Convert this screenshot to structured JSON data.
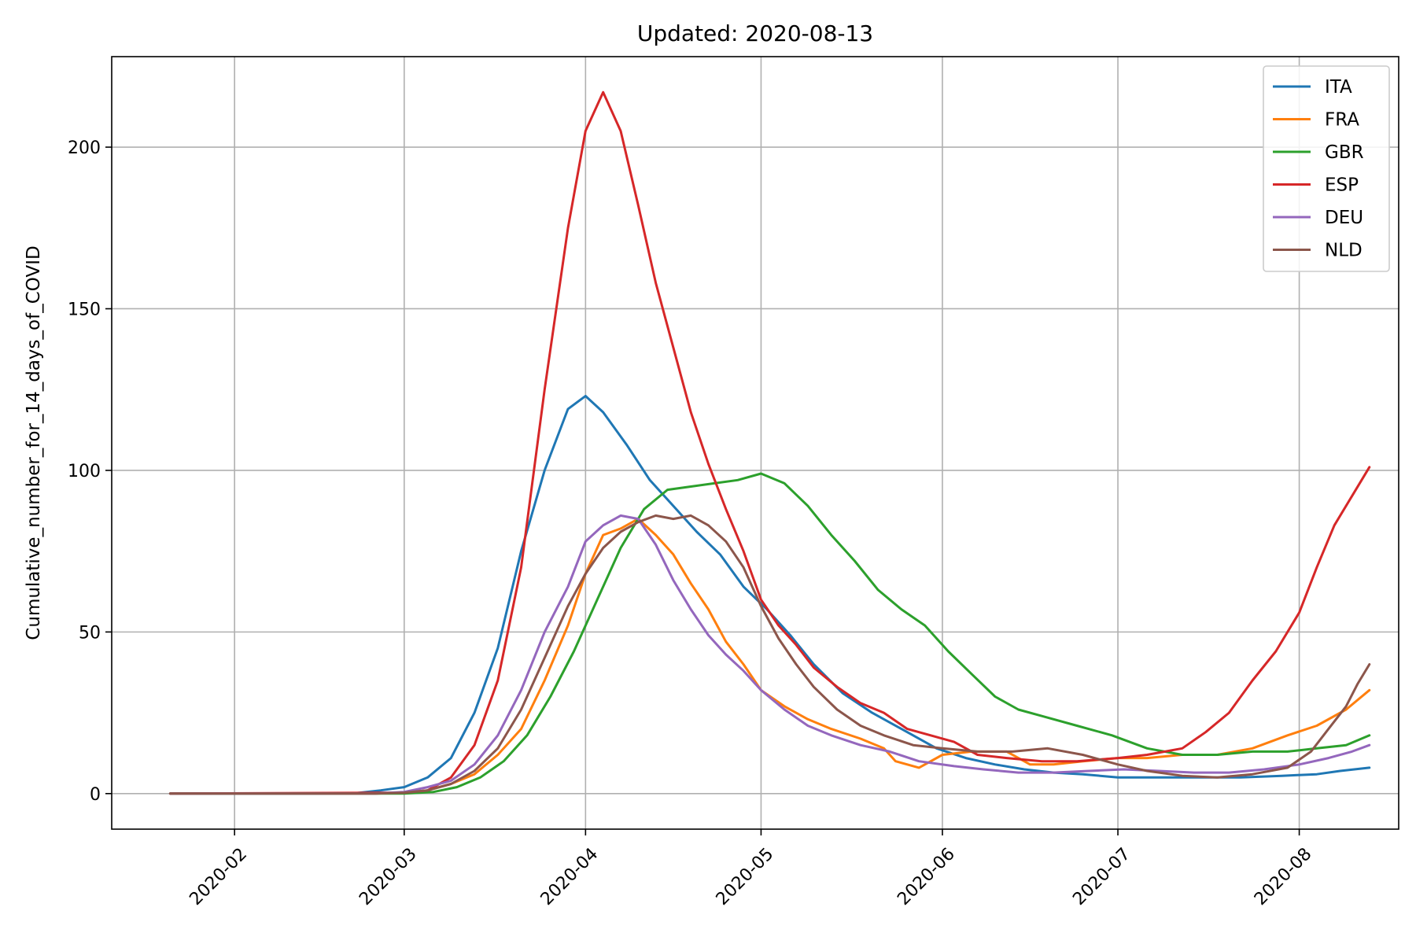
{
  "chart_data": {
    "type": "line",
    "title": "Updated: 2020-08-13",
    "xlabel": "",
    "ylabel": "Cumulative_number_for_14_days_of_COVID",
    "xlim": [
      "2020-01-11",
      "2020-08-18"
    ],
    "ylim": [
      -11,
      228
    ],
    "x_ticks": [
      "2020-02-01",
      "2020-03-01",
      "2020-04-01",
      "2020-05-01",
      "2020-06-01",
      "2020-07-01",
      "2020-08-01"
    ],
    "x_tick_labels": [
      "2020-02",
      "2020-03",
      "2020-04",
      "2020-05",
      "2020-06",
      "2020-07",
      "2020-08"
    ],
    "y_ticks": [
      0,
      50,
      100,
      150,
      200
    ],
    "grid": true,
    "legend_position": "top-right",
    "series": [
      {
        "name": "ITA",
        "color": "#1f77b4",
        "points": [
          [
            "2020-01-21",
            0
          ],
          [
            "2020-02-15",
            0
          ],
          [
            "2020-02-22",
            0.2
          ],
          [
            "2020-02-26",
            1
          ],
          [
            "2020-03-01",
            2
          ],
          [
            "2020-03-05",
            5
          ],
          [
            "2020-03-09",
            11
          ],
          [
            "2020-03-13",
            25
          ],
          [
            "2020-03-17",
            45
          ],
          [
            "2020-03-21",
            75
          ],
          [
            "2020-03-25",
            100
          ],
          [
            "2020-03-29",
            119
          ],
          [
            "2020-04-01",
            123
          ],
          [
            "2020-04-04",
            118
          ],
          [
            "2020-04-08",
            108
          ],
          [
            "2020-04-12",
            97
          ],
          [
            "2020-04-16",
            89
          ],
          [
            "2020-04-20",
            81
          ],
          [
            "2020-04-24",
            74
          ],
          [
            "2020-04-28",
            64
          ],
          [
            "2020-05-02",
            57
          ],
          [
            "2020-05-06",
            49
          ],
          [
            "2020-05-10",
            40
          ],
          [
            "2020-05-15",
            31
          ],
          [
            "2020-05-20",
            25
          ],
          [
            "2020-05-25",
            20
          ],
          [
            "2020-05-31",
            14
          ],
          [
            "2020-06-05",
            11
          ],
          [
            "2020-06-10",
            9
          ],
          [
            "2020-06-15",
            7.5
          ],
          [
            "2020-06-20",
            6.5
          ],
          [
            "2020-06-25",
            6
          ],
          [
            "2020-07-01",
            5
          ],
          [
            "2020-07-08",
            5
          ],
          [
            "2020-07-15",
            5
          ],
          [
            "2020-07-22",
            5
          ],
          [
            "2020-07-29",
            5.5
          ],
          [
            "2020-08-04",
            6
          ],
          [
            "2020-08-08",
            7
          ],
          [
            "2020-08-13",
            8
          ]
        ]
      },
      {
        "name": "FRA",
        "color": "#ff7f0e",
        "points": [
          [
            "2020-01-21",
            0
          ],
          [
            "2020-02-25",
            0
          ],
          [
            "2020-03-01",
            0.3
          ],
          [
            "2020-03-05",
            1
          ],
          [
            "2020-03-09",
            3
          ],
          [
            "2020-03-13",
            6
          ],
          [
            "2020-03-17",
            12
          ],
          [
            "2020-03-21",
            20
          ],
          [
            "2020-03-25",
            35
          ],
          [
            "2020-03-29",
            52
          ],
          [
            "2020-04-01",
            68
          ],
          [
            "2020-04-04",
            80
          ],
          [
            "2020-04-07",
            82
          ],
          [
            "2020-04-10",
            85
          ],
          [
            "2020-04-13",
            80
          ],
          [
            "2020-04-16",
            74
          ],
          [
            "2020-04-19",
            65
          ],
          [
            "2020-04-22",
            57
          ],
          [
            "2020-04-25",
            47
          ],
          [
            "2020-04-28",
            40
          ],
          [
            "2020-05-01",
            32
          ],
          [
            "2020-05-05",
            27
          ],
          [
            "2020-05-09",
            23
          ],
          [
            "2020-05-13",
            20
          ],
          [
            "2020-05-18",
            17
          ],
          [
            "2020-05-22",
            14
          ],
          [
            "2020-05-24",
            10
          ],
          [
            "2020-05-28",
            8
          ],
          [
            "2020-06-01",
            12
          ],
          [
            "2020-06-06",
            13
          ],
          [
            "2020-06-12",
            13
          ],
          [
            "2020-06-16",
            9
          ],
          [
            "2020-06-20",
            9
          ],
          [
            "2020-06-25",
            10
          ],
          [
            "2020-07-01",
            11
          ],
          [
            "2020-07-06",
            11
          ],
          [
            "2020-07-12",
            12
          ],
          [
            "2020-07-18",
            12
          ],
          [
            "2020-07-24",
            14
          ],
          [
            "2020-07-30",
            18
          ],
          [
            "2020-08-04",
            21
          ],
          [
            "2020-08-09",
            26
          ],
          [
            "2020-08-13",
            32
          ]
        ]
      },
      {
        "name": "GBR",
        "color": "#2ca02c",
        "points": [
          [
            "2020-01-21",
            0
          ],
          [
            "2020-03-01",
            0
          ],
          [
            "2020-03-06",
            0.5
          ],
          [
            "2020-03-10",
            2
          ],
          [
            "2020-03-14",
            5
          ],
          [
            "2020-03-18",
            10
          ],
          [
            "2020-03-22",
            18
          ],
          [
            "2020-03-26",
            30
          ],
          [
            "2020-03-30",
            44
          ],
          [
            "2020-04-03",
            60
          ],
          [
            "2020-04-07",
            76
          ],
          [
            "2020-04-11",
            88
          ],
          [
            "2020-04-15",
            94
          ],
          [
            "2020-04-19",
            95
          ],
          [
            "2020-04-23",
            96
          ],
          [
            "2020-04-27",
            97
          ],
          [
            "2020-05-01",
            99
          ],
          [
            "2020-05-05",
            96
          ],
          [
            "2020-05-09",
            89
          ],
          [
            "2020-05-13",
            80
          ],
          [
            "2020-05-17",
            72
          ],
          [
            "2020-05-21",
            63
          ],
          [
            "2020-05-25",
            57
          ],
          [
            "2020-05-29",
            52
          ],
          [
            "2020-06-02",
            44
          ],
          [
            "2020-06-06",
            37
          ],
          [
            "2020-06-10",
            30
          ],
          [
            "2020-06-14",
            26
          ],
          [
            "2020-06-18",
            24
          ],
          [
            "2020-06-24",
            21
          ],
          [
            "2020-06-30",
            18
          ],
          [
            "2020-07-06",
            14
          ],
          [
            "2020-07-12",
            12
          ],
          [
            "2020-07-18",
            12
          ],
          [
            "2020-07-24",
            13
          ],
          [
            "2020-07-30",
            13
          ],
          [
            "2020-08-04",
            14
          ],
          [
            "2020-08-09",
            15
          ],
          [
            "2020-08-13",
            18
          ]
        ]
      },
      {
        "name": "ESP",
        "color": "#d62728",
        "points": [
          [
            "2020-01-21",
            0
          ],
          [
            "2020-03-01",
            0.3
          ],
          [
            "2020-03-05",
            1
          ],
          [
            "2020-03-09",
            5
          ],
          [
            "2020-03-13",
            15
          ],
          [
            "2020-03-17",
            35
          ],
          [
            "2020-03-21",
            70
          ],
          [
            "2020-03-25",
            125
          ],
          [
            "2020-03-29",
            175
          ],
          [
            "2020-04-01",
            205
          ],
          [
            "2020-04-04",
            217
          ],
          [
            "2020-04-07",
            205
          ],
          [
            "2020-04-10",
            182
          ],
          [
            "2020-04-13",
            158
          ],
          [
            "2020-04-16",
            138
          ],
          [
            "2020-04-19",
            118
          ],
          [
            "2020-04-22",
            102
          ],
          [
            "2020-04-25",
            88
          ],
          [
            "2020-04-28",
            75
          ],
          [
            "2020-05-01",
            60
          ],
          [
            "2020-05-04",
            52
          ],
          [
            "2020-05-07",
            46
          ],
          [
            "2020-05-10",
            39
          ],
          [
            "2020-05-14",
            33
          ],
          [
            "2020-05-18",
            28
          ],
          [
            "2020-05-22",
            25
          ],
          [
            "2020-05-26",
            20
          ],
          [
            "2020-05-30",
            18
          ],
          [
            "2020-06-03",
            16
          ],
          [
            "2020-06-07",
            12
          ],
          [
            "2020-06-12",
            11
          ],
          [
            "2020-06-18",
            10
          ],
          [
            "2020-06-24",
            10
          ],
          [
            "2020-07-01",
            11
          ],
          [
            "2020-07-06",
            12
          ],
          [
            "2020-07-12",
            14
          ],
          [
            "2020-07-16",
            19
          ],
          [
            "2020-07-20",
            25
          ],
          [
            "2020-07-24",
            35
          ],
          [
            "2020-07-28",
            44
          ],
          [
            "2020-08-01",
            56
          ],
          [
            "2020-08-04",
            70
          ],
          [
            "2020-08-07",
            83
          ],
          [
            "2020-08-10",
            92
          ],
          [
            "2020-08-13",
            101
          ]
        ]
      },
      {
        "name": "DEU",
        "color": "#9467bd",
        "points": [
          [
            "2020-01-21",
            0
          ],
          [
            "2020-02-25",
            0
          ],
          [
            "2020-03-01",
            0.5
          ],
          [
            "2020-03-05",
            2
          ],
          [
            "2020-03-09",
            4
          ],
          [
            "2020-03-13",
            9
          ],
          [
            "2020-03-17",
            18
          ],
          [
            "2020-03-21",
            32
          ],
          [
            "2020-03-25",
            50
          ],
          [
            "2020-03-29",
            64
          ],
          [
            "2020-04-01",
            78
          ],
          [
            "2020-04-04",
            83
          ],
          [
            "2020-04-07",
            86
          ],
          [
            "2020-04-10",
            85
          ],
          [
            "2020-04-13",
            77
          ],
          [
            "2020-04-16",
            66
          ],
          [
            "2020-04-19",
            57
          ],
          [
            "2020-04-22",
            49
          ],
          [
            "2020-04-25",
            43
          ],
          [
            "2020-04-28",
            38
          ],
          [
            "2020-05-01",
            32
          ],
          [
            "2020-05-05",
            26
          ],
          [
            "2020-05-09",
            21
          ],
          [
            "2020-05-13",
            18
          ],
          [
            "2020-05-18",
            15
          ],
          [
            "2020-05-23",
            13
          ],
          [
            "2020-05-28",
            10
          ],
          [
            "2020-06-03",
            8.5
          ],
          [
            "2020-06-08",
            7.5
          ],
          [
            "2020-06-14",
            6.5
          ],
          [
            "2020-06-20",
            6.5
          ],
          [
            "2020-06-26",
            7
          ],
          [
            "2020-07-02",
            7.5
          ],
          [
            "2020-07-08",
            7
          ],
          [
            "2020-07-14",
            6.5
          ],
          [
            "2020-07-20",
            6.5
          ],
          [
            "2020-07-26",
            7.5
          ],
          [
            "2020-08-01",
            9
          ],
          [
            "2020-08-06",
            11
          ],
          [
            "2020-08-10",
            13
          ],
          [
            "2020-08-13",
            15
          ]
        ]
      },
      {
        "name": "NLD",
        "color": "#8c564b",
        "points": [
          [
            "2020-01-21",
            0
          ],
          [
            "2020-02-25",
            0
          ],
          [
            "2020-03-01",
            0.3
          ],
          [
            "2020-03-05",
            1
          ],
          [
            "2020-03-09",
            3
          ],
          [
            "2020-03-13",
            7
          ],
          [
            "2020-03-17",
            14
          ],
          [
            "2020-03-21",
            26
          ],
          [
            "2020-03-25",
            42
          ],
          [
            "2020-03-29",
            58
          ],
          [
            "2020-04-01",
            68
          ],
          [
            "2020-04-04",
            76
          ],
          [
            "2020-04-07",
            81
          ],
          [
            "2020-04-10",
            84
          ],
          [
            "2020-04-13",
            86
          ],
          [
            "2020-04-16",
            85
          ],
          [
            "2020-04-19",
            86
          ],
          [
            "2020-04-22",
            83
          ],
          [
            "2020-04-25",
            78
          ],
          [
            "2020-04-28",
            70
          ],
          [
            "2020-05-01",
            58
          ],
          [
            "2020-05-04",
            48
          ],
          [
            "2020-05-07",
            40
          ],
          [
            "2020-05-10",
            33
          ],
          [
            "2020-05-14",
            26
          ],
          [
            "2020-05-18",
            21
          ],
          [
            "2020-05-22",
            18
          ],
          [
            "2020-05-27",
            15
          ],
          [
            "2020-06-01",
            14
          ],
          [
            "2020-06-07",
            13
          ],
          [
            "2020-06-13",
            13
          ],
          [
            "2020-06-19",
            14
          ],
          [
            "2020-06-25",
            12
          ],
          [
            "2020-07-01",
            9
          ],
          [
            "2020-07-06",
            7
          ],
          [
            "2020-07-12",
            5.5
          ],
          [
            "2020-07-18",
            5
          ],
          [
            "2020-07-24",
            6
          ],
          [
            "2020-07-30",
            8
          ],
          [
            "2020-08-03",
            13
          ],
          [
            "2020-08-06",
            20
          ],
          [
            "2020-08-09",
            27
          ],
          [
            "2020-08-11",
            34
          ],
          [
            "2020-08-13",
            40
          ]
        ]
      }
    ]
  }
}
